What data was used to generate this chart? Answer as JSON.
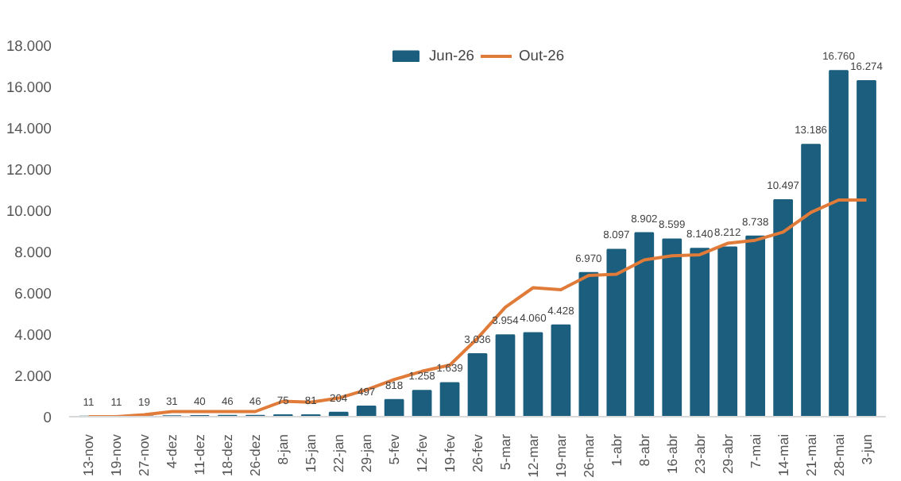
{
  "chart_data": {
    "type": "bar",
    "categories": [
      "13-nov",
      "19-nov",
      "27-nov",
      "4-dez",
      "11-dez",
      "18-dez",
      "26-dez",
      "8-jan",
      "15-jan",
      "22-jan",
      "29-jan",
      "5-fev",
      "12-fev",
      "19-fev",
      "26-fev",
      "5-mar",
      "12-mar",
      "19-mar",
      "26-mar",
      "1-abr",
      "8-abr",
      "16-abr",
      "23-abr",
      "29-abr",
      "7-mai",
      "14-mai",
      "21-mai",
      "28-mai",
      "3-jun"
    ],
    "series": [
      {
        "name": "Jun-26",
        "color": "#1b5e7e",
        "values": [
          11,
          11,
          19,
          31,
          40,
          46,
          46,
          75,
          81,
          204,
          497,
          818,
          1258,
          1639,
          3036,
          3954,
          4060,
          4428,
          6970,
          8097,
          8902,
          8599,
          8140,
          8212,
          8738,
          10497,
          13186,
          16760,
          16274
        ],
        "value_labels": [
          "11",
          "11",
          "19",
          "31",
          "40",
          "46",
          "46",
          "75",
          "81",
          "204",
          "497",
          "818",
          "1.258",
          "1.639",
          "3.036",
          "3.954",
          "4.060",
          "4.428",
          "6.970",
          "8.097",
          "8.902",
          "8.599",
          "8.140",
          "8.212",
          "8.738",
          "10.497",
          "13.186",
          "16.760",
          "16.274"
        ]
      },
      {
        "name": "Out-26",
        "type": "line",
        "color": "#e07b39",
        "values": [
          0,
          0,
          100,
          250,
          250,
          250,
          250,
          750,
          700,
          900,
          1300,
          1800,
          2200,
          2500,
          3800,
          5300,
          6250,
          6150,
          6850,
          6900,
          7600,
          7800,
          7850,
          8400,
          8550,
          8950,
          9900,
          10500,
          10500
        ]
      }
    ],
    "ylim": [
      0,
      18000
    ],
    "yticks": [
      {
        "value": 0,
        "label": "0"
      },
      {
        "value": 2000,
        "label": "2.000"
      },
      {
        "value": 4000,
        "label": "4.000"
      },
      {
        "value": 6000,
        "label": "6.000"
      },
      {
        "value": 8000,
        "label": "8.000"
      },
      {
        "value": 10000,
        "label": "10.000"
      },
      {
        "value": 12000,
        "label": "12.000"
      },
      {
        "value": 14000,
        "label": "14.000"
      },
      {
        "value": 16000,
        "label": "16.000"
      },
      {
        "value": 18000,
        "label": "18.000"
      }
    ],
    "grid": false,
    "legend": "top",
    "line_style": "solid",
    "marker": "none"
  }
}
